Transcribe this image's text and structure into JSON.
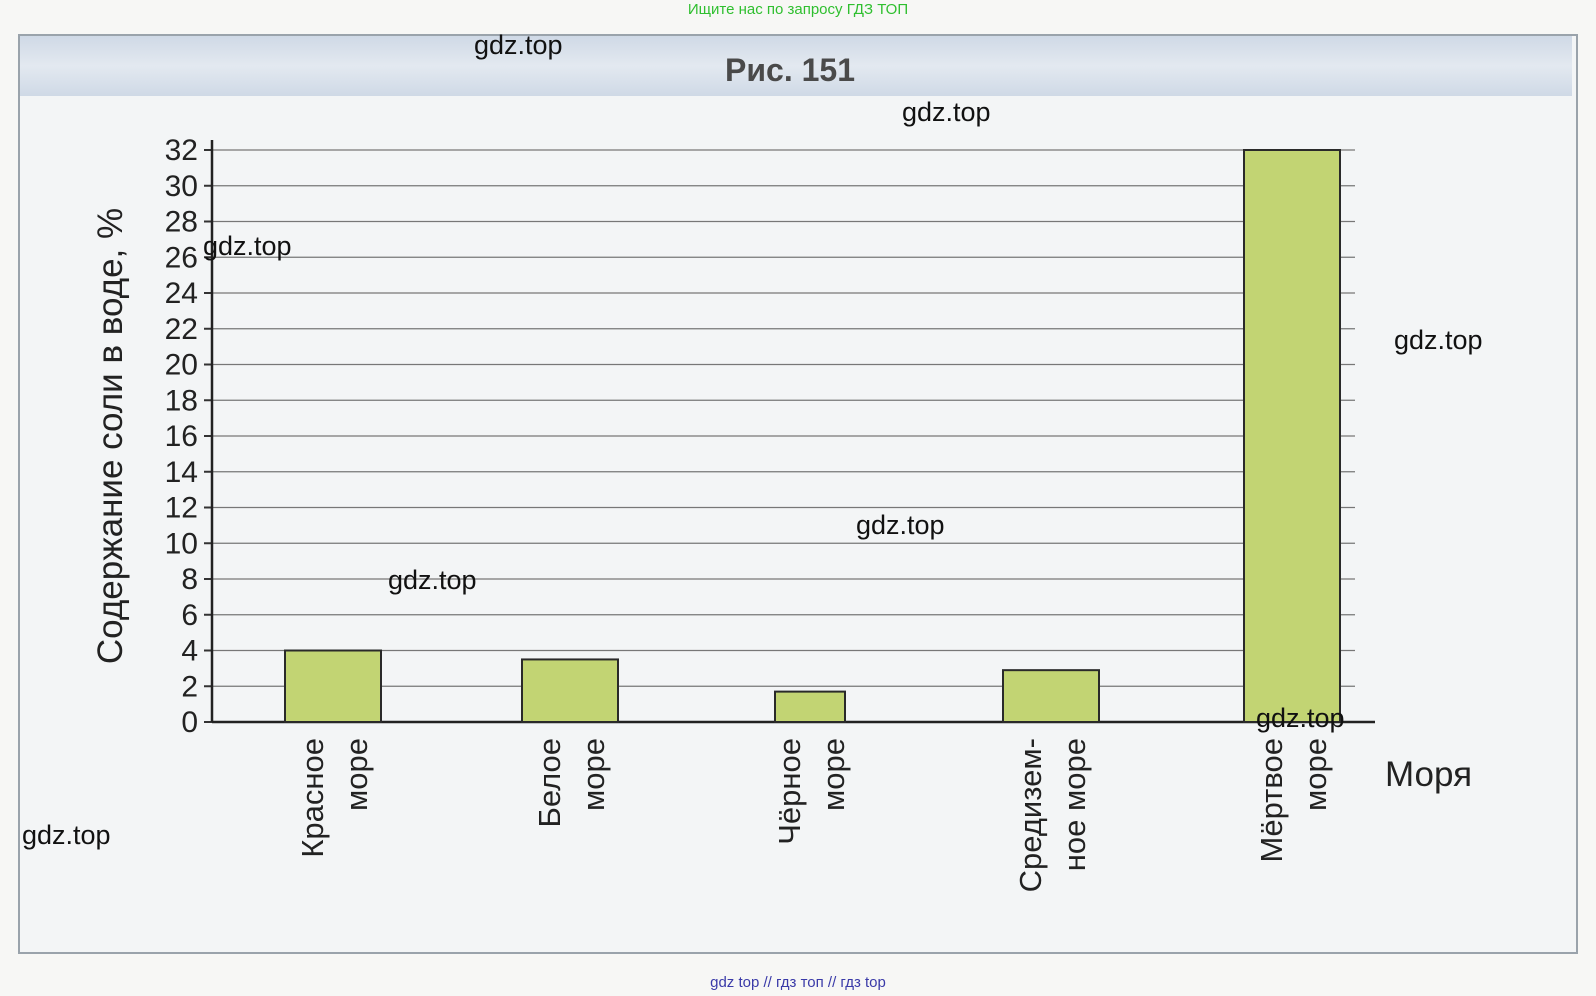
{
  "banner_top": "Ищите нас по запросу ГДЗ ТОП",
  "banner_bottom": "gdz top  //  гдз топ  //  гдз top",
  "watermark": "gdz.top",
  "chart_data": {
    "type": "bar",
    "title": "Рис. 151",
    "ylabel": "Содержание соли в воде, %",
    "xlabel": "Моря",
    "ylim": [
      0,
      32
    ],
    "yticks": [
      0,
      2,
      4,
      6,
      8,
      10,
      12,
      14,
      16,
      18,
      20,
      22,
      24,
      26,
      28,
      30,
      32
    ],
    "grid": true,
    "bar_color": "#c2d473",
    "categories": [
      [
        "Красное",
        "море"
      ],
      [
        "Белое",
        "море"
      ],
      [
        "Чёрное",
        "море"
      ],
      [
        "Средизем-",
        "ное море"
      ],
      [
        "Мёртвое",
        "море"
      ]
    ],
    "values": [
      4,
      3.5,
      1.7,
      2.9,
      32
    ]
  }
}
